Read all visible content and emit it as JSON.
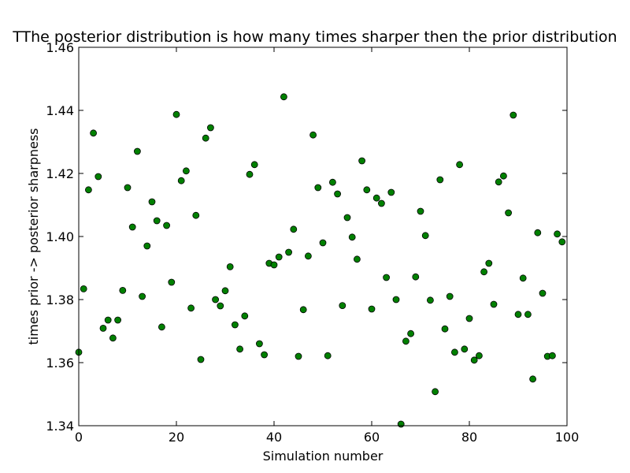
{
  "chart_data": {
    "type": "scatter",
    "title": "TThe posterior distribution is how many times sharper then the prior distribution",
    "xlabel": "Simulation number",
    "ylabel": "times prior -> posterior sharpness",
    "xlim": [
      0,
      100
    ],
    "ylim": [
      1.34,
      1.46
    ],
    "xticks": [
      "0",
      "20",
      "40",
      "60",
      "80",
      "100"
    ],
    "yticks": [
      "1.34",
      "1.36",
      "1.38",
      "1.40",
      "1.42",
      "1.44",
      "1.46"
    ],
    "grid": false,
    "marker_color": "#008000",
    "marker_edge": "#000000",
    "x": [
      0,
      1,
      2,
      3,
      4,
      5,
      6,
      7,
      8,
      9,
      10,
      11,
      12,
      13,
      14,
      15,
      16,
      17,
      18,
      19,
      20,
      21,
      22,
      23,
      24,
      25,
      26,
      27,
      28,
      29,
      30,
      31,
      32,
      33,
      34,
      35,
      36,
      37,
      38,
      39,
      40,
      41,
      42,
      43,
      44,
      45,
      46,
      47,
      48,
      49,
      50,
      51,
      52,
      53,
      54,
      55,
      56,
      57,
      58,
      59,
      60,
      61,
      62,
      63,
      64,
      65,
      66,
      67,
      68,
      69,
      70,
      71,
      72,
      73,
      74,
      75,
      76,
      77,
      78,
      79,
      80,
      81,
      82,
      83,
      84,
      85,
      86,
      87,
      88,
      89,
      90,
      91,
      92,
      93,
      94,
      95,
      96,
      97,
      98,
      99
    ],
    "y": [
      1.3633,
      1.3834,
      1.4148,
      1.4328,
      1.419,
      1.3709,
      1.3735,
      1.3678,
      1.3735,
      1.3829,
      1.4155,
      1.403,
      1.427,
      1.381,
      1.397,
      1.411,
      1.405,
      1.3713,
      1.4035,
      1.3855,
      1.4387,
      1.4177,
      1.4208,
      1.3773,
      1.4067,
      1.361,
      1.4312,
      1.4345,
      1.38,
      1.378,
      1.3828,
      1.3904,
      1.372,
      1.3643,
      1.3748,
      1.4197,
      1.4228,
      1.366,
      1.3625,
      1.3915,
      1.391,
      1.3935,
      1.4443,
      1.395,
      1.4023,
      1.362,
      1.3768,
      1.3938,
      1.4322,
      1.4155,
      1.398,
      1.3622,
      1.4172,
      1.4135,
      1.3781,
      1.406,
      1.3998,
      1.3928,
      1.424,
      1.4148,
      1.377,
      1.4122,
      1.4105,
      1.387,
      1.414,
      1.38,
      1.3405,
      1.3668,
      1.3692,
      1.3872,
      1.408,
      1.4003,
      1.3798,
      1.3508,
      1.418,
      1.3707,
      1.381,
      1.3633,
      1.4228,
      1.3643,
      1.374,
      1.3608,
      1.3622,
      1.3888,
      1.3915,
      1.3785,
      1.4173,
      1.4192,
      1.4075,
      1.4385,
      1.3753,
      1.3868,
      1.3753,
      1.3548,
      1.4012,
      1.382,
      1.362,
      1.3622,
      1.4008,
      1.3983
    ]
  }
}
